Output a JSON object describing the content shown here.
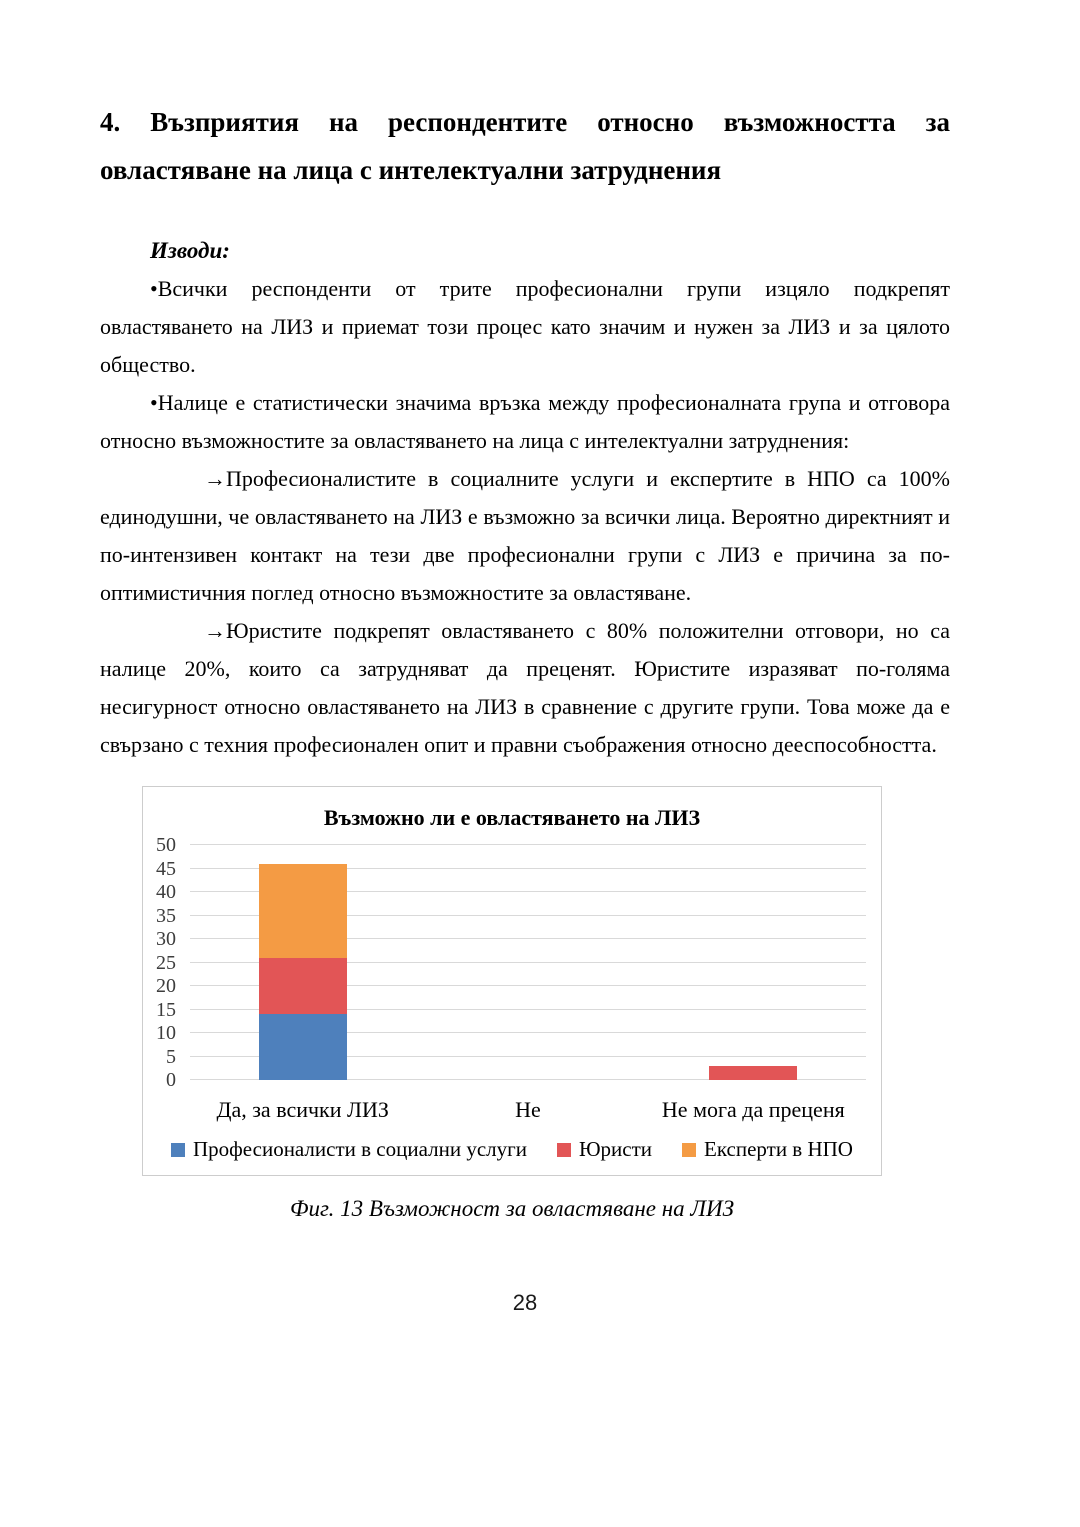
{
  "document": {
    "heading": "4. Възприятия на респондентите относно възможността за овластяване на лица с интелектуални затруднения",
    "conclusions_label": "Изводи:",
    "bullet_glyph": "•",
    "arrow_glyph": "→",
    "bullets": [
      "Всички респонденти от трите професионални групи изцяло подкрепят овластяването на ЛИЗ и приемат този процес като значим и нужен за ЛИЗ и за цялото общество.",
      "Налице е статистически значима връзка между професионалната група и отговора относно възможностите за овластяването на лица с интелектуални затруднения:"
    ],
    "arrow_points": [
      "Професионалистите в социалните услуги и експертите в НПО са 100% единодушни, че овластяването на ЛИЗ е възможно за всички лица. Вероятно директният и по-интензивен контакт на тези две професионални групи с ЛИЗ е причина за по-оптимистичния поглед относно възможностите за овластяване.",
      "Юристите подкрепят овластяването с 80% положителни отговори, но са налице 20%, които са затрудняват да преценят.  Юристите изразяват по-голяма несигурност относно овластяването на ЛИЗ в сравнение с другите групи. Това може да е свързано с техния професионален опит и правни съображения относно дееспособността."
    ],
    "figure_caption": "Фиг. 13 Възможност за овластяване на ЛИЗ",
    "page_number": "28"
  },
  "chart_data": {
    "type": "bar",
    "stacked": true,
    "title": "Възможно ли е овластяването на ЛИЗ",
    "categories": [
      "Да, за всички ЛИЗ",
      "Не",
      "Не мога да преценя"
    ],
    "series": [
      {
        "name": "Професионалисти в социални услуги",
        "color": "#4e80bc",
        "values": [
          14,
          0,
          0
        ]
      },
      {
        "name": "Юристи",
        "color": "#e25556",
        "values": [
          12,
          0,
          3
        ]
      },
      {
        "name": "Експерти в НПО",
        "color": "#f49b44",
        "values": [
          20,
          0,
          0
        ]
      }
    ],
    "ylim": [
      0,
      50
    ],
    "ytick_step": 5,
    "grid": true,
    "legend_position": "bottom",
    "colors": {
      "blue": "#4e80bc",
      "red": "#e25556",
      "orange": "#f49b44",
      "gridline": "#d9d9d9",
      "border": "#cdcdcd"
    }
  }
}
